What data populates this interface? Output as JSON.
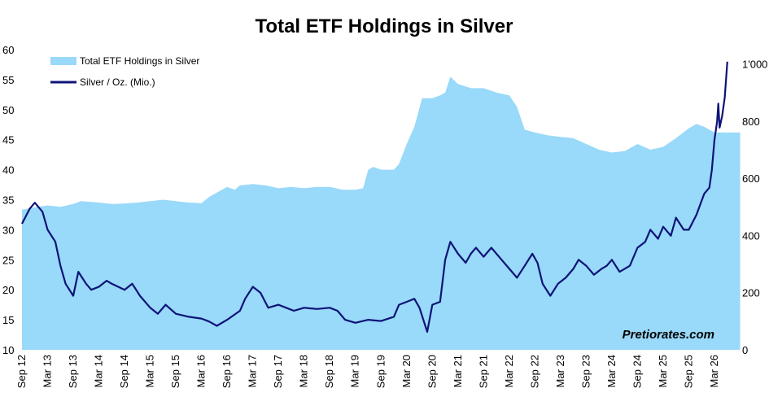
{
  "chart_data": {
    "type": "area+line",
    "title": "Total ETF Holdings in Silver",
    "watermark": "Pretiorates.com",
    "x_labels": [
      "Sep 12",
      "Mar 13",
      "Sep 13",
      "Mar 14",
      "Sep 14",
      "Mar 15",
      "Sep 15",
      "Mar 16",
      "Sep 16",
      "Mar 17",
      "Sep 17",
      "Mar 18",
      "Sep 18",
      "Mar 19",
      "Sep 19",
      "Mar 20",
      "Sep 20",
      "Mar 21",
      "Sep 21",
      "Mar 22",
      "Sep 22",
      "Mar 23",
      "Sep 23",
      "Mar 24",
      "Sep 24",
      "Mar 25",
      "Sep 25",
      "Mar 26"
    ],
    "left_axis": {
      "ylim": [
        10,
        60
      ],
      "ticks": [
        "10",
        "15",
        "20",
        "25",
        "30",
        "35",
        "40",
        "45",
        "50",
        "55",
        "60"
      ]
    },
    "right_axis": {
      "ylim": [
        0,
        1050
      ],
      "ticks": [
        "0",
        "200",
        "400",
        "600",
        "800",
        "1'000"
      ]
    },
    "series": [
      {
        "name": "Total ETF Holdings in Silver",
        "kind": "area",
        "axis": "right",
        "color": "#99d9f9",
        "points": [
          [
            0,
            490
          ],
          [
            0.3,
            495
          ],
          [
            0.6,
            500
          ],
          [
            1,
            505
          ],
          [
            1.5,
            500
          ],
          [
            2,
            510
          ],
          [
            2.3,
            520
          ],
          [
            3,
            515
          ],
          [
            3.5,
            510
          ],
          [
            4,
            512
          ],
          [
            4.5,
            515
          ],
          [
            5,
            520
          ],
          [
            5.5,
            525
          ],
          [
            6,
            520
          ],
          [
            6.5,
            515
          ],
          [
            7,
            513
          ],
          [
            7.3,
            535
          ],
          [
            7.6,
            550
          ],
          [
            8,
            570
          ],
          [
            8.3,
            560
          ],
          [
            8.5,
            575
          ],
          [
            9,
            580
          ],
          [
            9.5,
            575
          ],
          [
            10,
            565
          ],
          [
            10.5,
            570
          ],
          [
            11,
            565
          ],
          [
            11.5,
            570
          ],
          [
            12,
            570
          ],
          [
            12.5,
            560
          ],
          [
            13,
            560
          ],
          [
            13.3,
            565
          ],
          [
            13.5,
            630
          ],
          [
            13.7,
            640
          ],
          [
            14,
            630
          ],
          [
            14.5,
            630
          ],
          [
            14.7,
            650
          ],
          [
            15,
            720
          ],
          [
            15.3,
            780
          ],
          [
            15.6,
            880
          ],
          [
            16,
            880
          ],
          [
            16.3,
            890
          ],
          [
            16.5,
            900
          ],
          [
            16.7,
            955
          ],
          [
            17,
            930
          ],
          [
            17.5,
            915
          ],
          [
            18,
            915
          ],
          [
            18.5,
            900
          ],
          [
            19,
            890
          ],
          [
            19.3,
            850
          ],
          [
            19.6,
            770
          ],
          [
            20,
            760
          ],
          [
            20.5,
            750
          ],
          [
            21,
            745
          ],
          [
            21.5,
            740
          ],
          [
            22,
            720
          ],
          [
            22.5,
            700
          ],
          [
            23,
            690
          ],
          [
            23.5,
            695
          ],
          [
            24,
            720
          ],
          [
            24.5,
            700
          ],
          [
            25,
            710
          ],
          [
            25.5,
            740
          ],
          [
            26,
            775
          ],
          [
            26.3,
            790
          ],
          [
            26.6,
            780
          ],
          [
            27,
            760
          ],
          [
            27.5,
            760
          ],
          [
            28,
            760
          ]
        ]
      },
      {
        "name": "Silver / Oz. (Mio.)",
        "kind": "line",
        "axis": "left",
        "color": "#0d1377",
        "points": [
          [
            0,
            31
          ],
          [
            0.3,
            33.5
          ],
          [
            0.5,
            34.5
          ],
          [
            0.8,
            33
          ],
          [
            1,
            30
          ],
          [
            1.3,
            28
          ],
          [
            1.5,
            24
          ],
          [
            1.7,
            21
          ],
          [
            2,
            19
          ],
          [
            2.2,
            23
          ],
          [
            2.5,
            21
          ],
          [
            2.7,
            20
          ],
          [
            3,
            20.5
          ],
          [
            3.3,
            21.5
          ],
          [
            3.5,
            21
          ],
          [
            4,
            20
          ],
          [
            4.3,
            21
          ],
          [
            4.6,
            19
          ],
          [
            5,
            17
          ],
          [
            5.3,
            16
          ],
          [
            5.6,
            17.5
          ],
          [
            6,
            16
          ],
          [
            6.5,
            15.5
          ],
          [
            7,
            15.2
          ],
          [
            7.3,
            14.7
          ],
          [
            7.6,
            14
          ],
          [
            8,
            15
          ],
          [
            8.5,
            16.5
          ],
          [
            8.7,
            18.5
          ],
          [
            9,
            20.5
          ],
          [
            9.3,
            19.5
          ],
          [
            9.6,
            17
          ],
          [
            10,
            17.5
          ],
          [
            10.3,
            17
          ],
          [
            10.6,
            16.5
          ],
          [
            11,
            17
          ],
          [
            11.5,
            16.8
          ],
          [
            12,
            17
          ],
          [
            12.3,
            16.5
          ],
          [
            12.6,
            15
          ],
          [
            13,
            14.5
          ],
          [
            13.5,
            15
          ],
          [
            14,
            14.8
          ],
          [
            14.5,
            15.5
          ],
          [
            14.7,
            17.5
          ],
          [
            15,
            18
          ],
          [
            15.3,
            18.5
          ],
          [
            15.5,
            17
          ],
          [
            15.8,
            13
          ],
          [
            16,
            17.5
          ],
          [
            16.3,
            18
          ],
          [
            16.5,
            25
          ],
          [
            16.7,
            28
          ],
          [
            17,
            26
          ],
          [
            17.3,
            24.5
          ],
          [
            17.5,
            26
          ],
          [
            17.7,
            27
          ],
          [
            18,
            25.5
          ],
          [
            18.3,
            27
          ],
          [
            18.7,
            25
          ],
          [
            19,
            23.5
          ],
          [
            19.3,
            22
          ],
          [
            19.6,
            24
          ],
          [
            19.9,
            26
          ],
          [
            20.1,
            24.5
          ],
          [
            20.3,
            21
          ],
          [
            20.6,
            19
          ],
          [
            20.9,
            21
          ],
          [
            21.2,
            22
          ],
          [
            21.5,
            23.5
          ],
          [
            21.7,
            25
          ],
          [
            22,
            24
          ],
          [
            22.3,
            22.5
          ],
          [
            22.6,
            23.5
          ],
          [
            22.8,
            24
          ],
          [
            23,
            25
          ],
          [
            23.3,
            23
          ],
          [
            23.7,
            24
          ],
          [
            24,
            27
          ],
          [
            24.3,
            28
          ],
          [
            24.5,
            30
          ],
          [
            24.8,
            28.5
          ],
          [
            25,
            30.5
          ],
          [
            25.3,
            29
          ],
          [
            25.5,
            32
          ],
          [
            25.8,
            30
          ],
          [
            26,
            30
          ],
          [
            26.3,
            32.5
          ],
          [
            26.6,
            36
          ],
          [
            26.8,
            37
          ],
          [
            26.9,
            40
          ],
          [
            27,
            45
          ],
          [
            27.1,
            48
          ],
          [
            27.15,
            51
          ],
          [
            27.2,
            47
          ],
          [
            27.3,
            49
          ],
          [
            27.4,
            52
          ],
          [
            27.5,
            58
          ]
        ]
      }
    ]
  },
  "legend": {
    "items": [
      {
        "label": "Total ETF Holdings in Silver",
        "swatch": "area"
      },
      {
        "label": "Silver / Oz. (Mio.)",
        "swatch": "line"
      }
    ]
  }
}
